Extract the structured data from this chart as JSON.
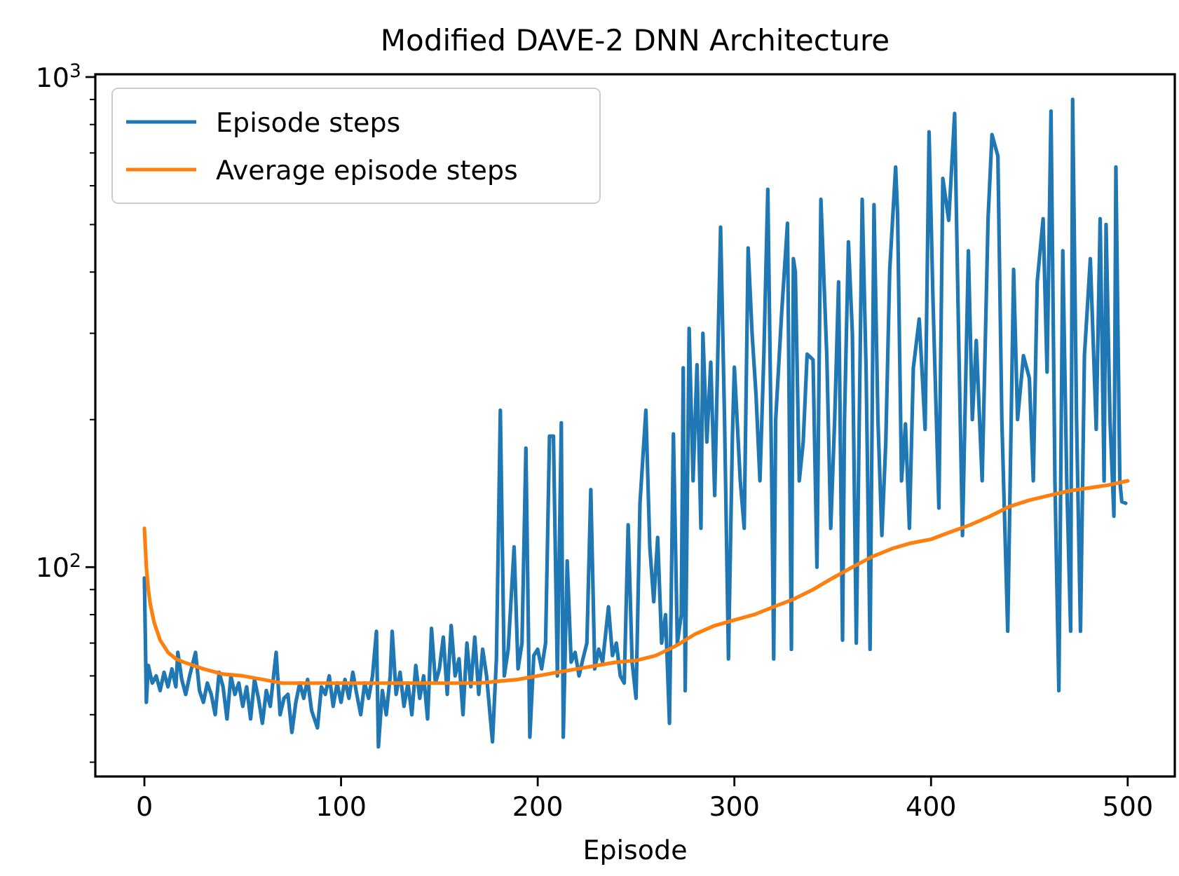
{
  "chart_data": {
    "type": "line",
    "title": "Modified DAVE-2 DNN Architecture",
    "xlabel": "Episode",
    "log": "y",
    "grid": false,
    "legend": "top left",
    "xlim": [
      -24.95,
      523.95
    ],
    "xticks": [
      0,
      100,
      200,
      300,
      400,
      500
    ],
    "ylim": [
      37.4,
      1013
    ],
    "yticks": [
      {
        "value": 40,
        "label": null
      },
      {
        "value": 50,
        "label": null
      },
      {
        "value": 60,
        "label": null
      },
      {
        "value": 70,
        "label": null
      },
      {
        "value": 80,
        "label": null
      },
      {
        "value": 90,
        "label": null
      },
      {
        "value": 100,
        "label": "10$^{2}$"
      },
      {
        "value": 200,
        "label": null
      },
      {
        "value": 300,
        "label": null
      },
      {
        "value": 400,
        "label": null
      },
      {
        "value": 500,
        "label": null
      },
      {
        "value": 600,
        "label": null
      },
      {
        "value": 700,
        "label": null
      },
      {
        "value": 800,
        "label": null
      },
      {
        "value": 900,
        "label": null
      },
      {
        "value": 1000,
        "label": "10$^{3}$"
      }
    ],
    "series": [
      {
        "name": "Episode steps",
        "color": "#1f77b4",
        "x": [
          0,
          1,
          2,
          4,
          6,
          8,
          10,
          12,
          14,
          16,
          17,
          19,
          21,
          23,
          26,
          28,
          30,
          32,
          34,
          36,
          38,
          40,
          42,
          44,
          46,
          48,
          50,
          52,
          54,
          56,
          58,
          60,
          62,
          64,
          67,
          69,
          71,
          73,
          75,
          77,
          79,
          81,
          83,
          85,
          88,
          90,
          92,
          94,
          96,
          98,
          100,
          102,
          104,
          106,
          108,
          110,
          112,
          114,
          116,
          118,
          119,
          121,
          123,
          125,
          126,
          128,
          130,
          132,
          134,
          136,
          138,
          140,
          142,
          144,
          146,
          148,
          150,
          152,
          154,
          156,
          158,
          160,
          162,
          164,
          166,
          168,
          170,
          172,
          174,
          177,
          179,
          181,
          183,
          185,
          188,
          190,
          192,
          194,
          196,
          198,
          200,
          202,
          204,
          206,
          208,
          210,
          212,
          213,
          215,
          217,
          219,
          221,
          223,
          225,
          227,
          229,
          231,
          233,
          236,
          238,
          240,
          242,
          244,
          246,
          248,
          250,
          252,
          255,
          257,
          259,
          261,
          263,
          265,
          267,
          269,
          271,
          273,
          274,
          275,
          277,
          279,
          281,
          283,
          284,
          286,
          288,
          290,
          293,
          295,
          297,
          299,
          300,
          303,
          305,
          307,
          309,
          311,
          313,
          315,
          317,
          319,
          320,
          321,
          324,
          327,
          329,
          330,
          331,
          333,
          335,
          337,
          340,
          342,
          344,
          347,
          349,
          351,
          353,
          355,
          356,
          358,
          360,
          362,
          365,
          367,
          369,
          371,
          373,
          375,
          377,
          379,
          382,
          383,
          385,
          387,
          389,
          391,
          394,
          397,
          399,
          401,
          404,
          406,
          409,
          412,
          414,
          416,
          419,
          421,
          423,
          426,
          429,
          431,
          434,
          436,
          439,
          442,
          444,
          447,
          450,
          452,
          454,
          457,
          459,
          461,
          463,
          465,
          467,
          469,
          471,
          472,
          474,
          476,
          478,
          481,
          484,
          486,
          488,
          489,
          491,
          493,
          494,
          496,
          497,
          499
        ],
        "values": [
          95,
          53,
          63,
          58,
          60,
          56,
          61,
          57,
          62,
          57,
          67,
          59,
          55,
          60,
          67,
          56,
          53,
          58,
          55,
          50,
          61,
          57,
          49,
          60,
          55,
          58,
          52,
          57,
          49,
          59,
          54,
          48,
          56,
          52,
          67,
          50,
          54,
          55,
          46,
          53,
          58,
          54,
          59,
          51,
          47,
          57,
          55,
          60,
          52,
          58,
          53,
          59,
          54,
          61,
          55,
          50,
          58,
          54,
          60,
          74,
          43,
          56,
          50,
          60,
          74,
          55,
          61,
          52,
          58,
          50,
          63,
          54,
          60,
          49,
          75,
          58,
          62,
          72,
          55,
          76,
          60,
          65,
          50,
          70,
          57,
          72,
          55,
          68,
          60,
          44,
          65,
          209,
          60,
          68,
          110,
          62,
          70,
          175,
          45,
          66,
          68,
          62,
          70,
          185,
          185,
          60,
          197,
          45,
          103,
          64,
          67,
          60,
          65,
          70,
          144,
          62,
          68,
          64,
          83,
          66,
          70,
          60,
          58,
          122,
          64,
          54,
          135,
          209,
          110,
          85,
          115,
          70,
          80,
          48,
          187,
          70,
          80,
          255,
          56,
          307,
          150,
          259,
          120,
          300,
          180,
          262,
          140,
          494,
          200,
          65,
          185,
          256,
          150,
          120,
          448,
          300,
          225,
          150,
          272,
          590,
          150,
          65,
          200,
          328,
          503,
          68,
          426,
          400,
          150,
          180,
          272,
          265,
          100,
          563,
          270,
          120,
          200,
          382,
          71,
          200,
          461,
          300,
          70,
          563,
          250,
          68,
          549,
          200,
          116,
          180,
          405,
          655,
          525,
          150,
          196,
          120,
          255,
          321,
          191,
          773,
          350,
          132,
          621,
          510,
          843,
          300,
          116,
          442,
          200,
          290,
          150,
          514,
          763,
          690,
          200,
          74,
          405,
          200,
          270,
          243,
          150,
          382,
          514,
          250,
          852,
          150,
          56,
          442,
          150,
          74,
          900,
          200,
          74,
          270,
          426,
          191,
          514,
          150,
          500,
          200,
          127,
          655,
          150,
          136,
          135
        ]
      },
      {
        "name": "Average episode steps",
        "color": "#ff7f0e",
        "x": [
          0,
          1,
          2,
          3,
          5,
          8,
          12,
          16,
          20,
          30,
          40,
          50,
          60,
          70,
          80,
          100,
          120,
          150,
          170,
          180,
          190,
          200,
          210,
          220,
          230,
          240,
          250,
          260,
          270,
          280,
          290,
          300,
          310,
          320,
          330,
          340,
          350,
          360,
          370,
          380,
          390,
          400,
          410,
          420,
          430,
          440,
          450,
          460,
          470,
          480,
          490,
          500
        ],
        "values": [
          120,
          100,
          90,
          84,
          77,
          71,
          67,
          65,
          64,
          62,
          60.5,
          60,
          59,
          58,
          58,
          58,
          58,
          58,
          58,
          58.5,
          59,
          60,
          61,
          62,
          63,
          64,
          64.5,
          66,
          69,
          73,
          76,
          78,
          80,
          83,
          86,
          90,
          95,
          100,
          105,
          109,
          112,
          114,
          118,
          122,
          127,
          133,
          137,
          140,
          143,
          145,
          147,
          150
        ]
      }
    ]
  }
}
